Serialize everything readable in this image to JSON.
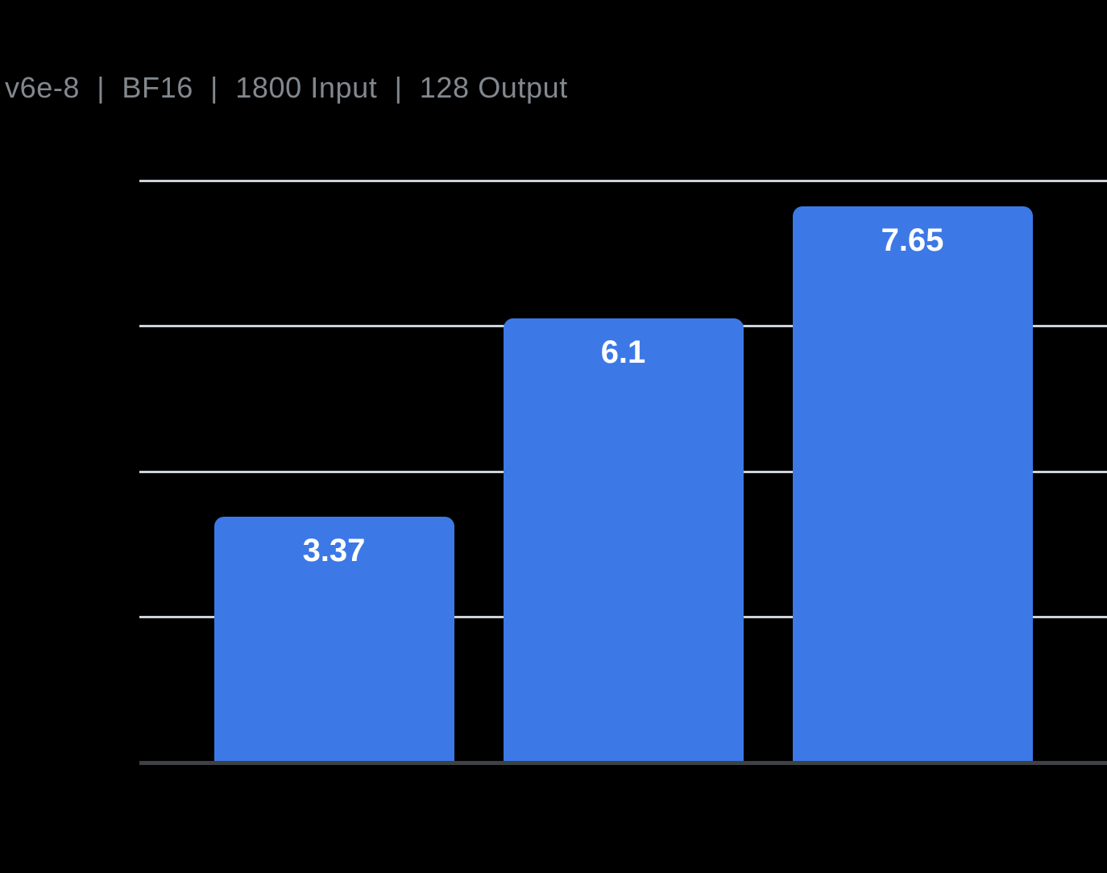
{
  "page": {
    "background": "#000000"
  },
  "header": {
    "title": "v6e-8  |  BF16  |  1800 Input  |  128 Output",
    "color": "#82888E"
  },
  "chart_data": {
    "type": "bar",
    "title": "v6e-8  |  BF16  |  1800 Input  |  128 Output",
    "values": [
      3.37,
      6.1,
      7.65
    ],
    "bar_labels": [
      "3.37",
      "6.1",
      "7.65"
    ],
    "ylim": [
      0,
      8
    ],
    "gridline_step": 2,
    "grid": true,
    "legend": false,
    "axis_tick_labels": "none",
    "bar_color": "#3C79E6",
    "bar_label_color": "#FFFFFF",
    "gridline_color": "#CDD3DB",
    "axis_line_color": "#3F4245",
    "background_color": "#000000",
    "title_color": "#82888E"
  }
}
